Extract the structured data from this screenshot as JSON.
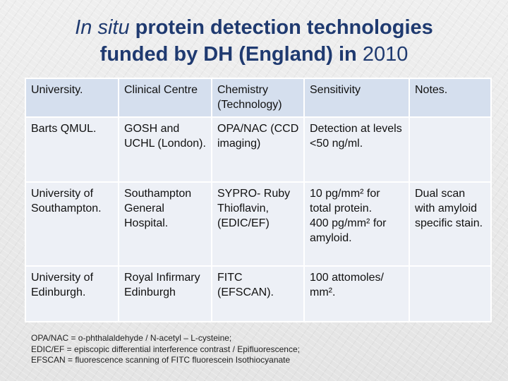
{
  "title": {
    "italic_part": "In situ",
    "line1_rest": " protein detection technologies",
    "line2_main": "funded by DH (England) in ",
    "line2_year": "2010"
  },
  "table": {
    "headers": [
      "University.",
      "Clinical Centre",
      "Chemistry (Technology)",
      "Sensitivity",
      "Notes."
    ],
    "rows": [
      {
        "university": "Barts QMUL.",
        "centre": "GOSH and UCHL (London).",
        "chemistry": "OPA/NAC (CCD imaging)",
        "sensitivity": [
          "Detection at levels <50 ng/ml."
        ],
        "notes": ""
      },
      {
        "university": "University of Southampton.",
        "centre": "Southampton General Hospital.",
        "chemistry": "SYPRO- Ruby Thioflavin, (EDIC/EF)",
        "sensitivity": [
          "10 pg/mm² for total protein.",
          "400 pg/mm² for amyloid."
        ],
        "notes": "Dual scan with amyloid specific stain."
      },
      {
        "university": "University of Edinburgh.",
        "centre": "Royal Infirmary Edinburgh",
        "chemistry": "FITC (EFSCAN).",
        "sensitivity": [
          "100 attomoles/ mm²."
        ],
        "notes": ""
      }
    ]
  },
  "footnotes": [
    "OPA/NAC = o-phthalaldehyde / N-acetyl – L-cysteine;",
    "EDIC/EF = episcopic differential interference contrast / Epifluorescence;",
    "EFSCAN = fluorescence scanning of  FITC fluorescein Isothiocyanate"
  ]
}
